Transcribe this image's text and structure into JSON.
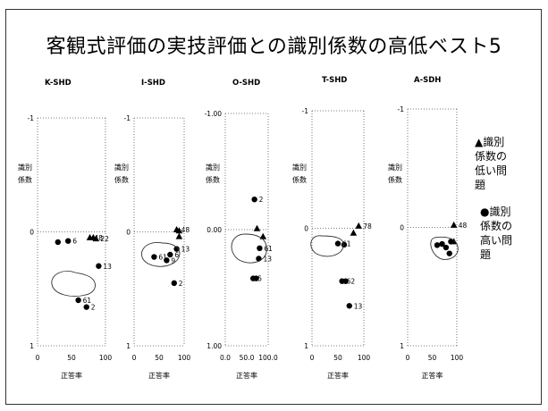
{
  "title": "客観式評価の実技評価との識別係数の高低ベスト5",
  "legend": {
    "low": [
      "▲識別",
      "係数の",
      "低い問",
      "題"
    ],
    "high": [
      "●識別",
      "係数の",
      "高い問",
      "題"
    ]
  },
  "chart_data": [
    {
      "type": "scatter",
      "title": "K-SHD",
      "xlabel": "正答率",
      "ylabel": "識別係数",
      "xlim": [
        0,
        100
      ],
      "ylim": [
        1,
        -1
      ],
      "yticks": [
        "-1",
        "0",
        "1"
      ],
      "xticks": [
        "0",
        "50",
        "100"
      ],
      "series": [
        {
          "name": "●識別係数の高い問題",
          "points": [
            {
              "x": 30,
              "y": 0.09
            },
            {
              "x": 45,
              "y": 0.08,
              "label": "6"
            },
            {
              "x": 90,
              "y": 0.3,
              "label": "13"
            },
            {
              "x": 60,
              "y": 0.6,
              "label": "61"
            },
            {
              "x": 72,
              "y": 0.66,
              "label": "2"
            }
          ]
        },
        {
          "name": "▲識別係数の低い問題",
          "points": [
            {
              "x": 77,
              "y": 0.05,
              "label": "48"
            },
            {
              "x": 82,
              "y": 0.05
            },
            {
              "x": 86,
              "y": 0.06,
              "label": "22"
            }
          ]
        }
      ]
    },
    {
      "type": "scatter",
      "title": "I-SHD",
      "xlabel": "正答率",
      "ylabel": "識別係数",
      "xlim": [
        0,
        100
      ],
      "ylim": [
        1,
        -1
      ],
      "yticks": [
        "-1",
        "0",
        "1"
      ],
      "xticks": [
        "0",
        "50",
        "100"
      ],
      "series": [
        {
          "name": "●識別係数の高い問題",
          "points": [
            {
              "x": 40,
              "y": 0.22,
              "label": "61"
            },
            {
              "x": 72,
              "y": 0.2,
              "label": "6"
            },
            {
              "x": 65,
              "y": 0.25,
              "label": "9"
            },
            {
              "x": 85,
              "y": 0.15,
              "label": "13"
            },
            {
              "x": 80,
              "y": 0.45,
              "label": "2"
            }
          ]
        },
        {
          "name": "▲識別係数の低い問題",
          "points": [
            {
              "x": 85,
              "y": -0.02,
              "label": "48"
            },
            {
              "x": 90,
              "y": -0.01
            },
            {
              "x": 90,
              "y": 0.04
            }
          ]
        }
      ]
    },
    {
      "type": "scatter",
      "title": "O-SHD",
      "xlabel": "正答率",
      "ylabel": "識別係数",
      "xlim": [
        0,
        100
      ],
      "ylim": [
        1.0,
        -1.0
      ],
      "yticks": [
        "-1.00",
        "0.00",
        "1.00"
      ],
      "xticks": [
        "0.0",
        "50.0",
        "100.0"
      ],
      "series": [
        {
          "name": "●識別係数の高い問題",
          "points": [
            {
              "x": 68,
              "y": -0.26,
              "label": "2"
            },
            {
              "x": 80,
              "y": 0.16,
              "label": "61"
            },
            {
              "x": 78,
              "y": 0.25,
              "label": "13"
            },
            {
              "x": 65,
              "y": 0.42,
              "label": "5"
            },
            {
              "x": 72,
              "y": 0.42
            }
          ]
        },
        {
          "name": "▲識別係数の低い問題",
          "points": [
            {
              "x": 74,
              "y": -0.01
            },
            {
              "x": 88,
              "y": 0.06
            }
          ]
        }
      ]
    },
    {
      "type": "scatter",
      "title": "T-SHD",
      "xlabel": "正答率",
      "ylabel": "識別係数",
      "xlim": [
        0,
        100
      ],
      "ylim": [
        1,
        -1
      ],
      "yticks": [
        "-1",
        "0",
        "1"
      ],
      "xticks": [
        "0",
        "50",
        "100"
      ],
      "series": [
        {
          "name": "●識別係数の高い問題",
          "points": [
            {
              "x": 50,
              "y": 0.13,
              "label": "61"
            },
            {
              "x": 62,
              "y": 0.14
            },
            {
              "x": 58,
              "y": 0.45,
              "label": "62"
            },
            {
              "x": 65,
              "y": 0.45
            },
            {
              "x": 72,
              "y": 0.66,
              "label": "13"
            }
          ]
        },
        {
          "name": "▲識別係数の低い問題",
          "points": [
            {
              "x": 90,
              "y": -0.02,
              "label": "78"
            },
            {
              "x": 80,
              "y": 0.04
            }
          ]
        }
      ]
    },
    {
      "type": "scatter",
      "title": "A-SDH",
      "xlabel": "正答率",
      "ylabel": "識別係数",
      "xlim": [
        0,
        100
      ],
      "ylim": [
        1,
        -1
      ],
      "yticks": [
        "-1",
        "0",
        "1"
      ],
      "xticks": [
        "0",
        "50",
        "100"
      ],
      "series": [
        {
          "name": "●識別係数の高い問題",
          "points": [
            {
              "x": 60,
              "y": 0.15
            },
            {
              "x": 70,
              "y": 0.14
            },
            {
              "x": 78,
              "y": 0.17
            },
            {
              "x": 85,
              "y": 0.22
            },
            {
              "x": 88,
              "y": 0.12
            }
          ]
        },
        {
          "name": "▲識別係数の低い問題",
          "points": [
            {
              "x": 94,
              "y": -0.02,
              "label": "48"
            },
            {
              "x": 94,
              "y": 0.12
            }
          ]
        }
      ]
    }
  ]
}
